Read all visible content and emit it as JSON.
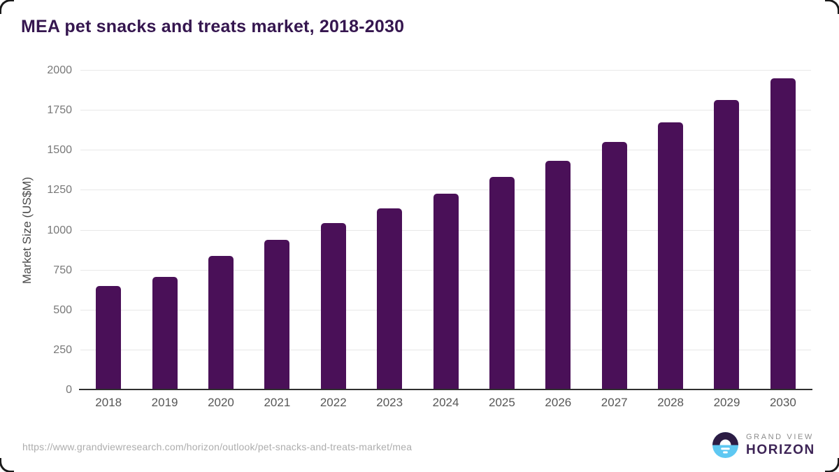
{
  "chart": {
    "title": "MEA pet snacks and treats market, 2018-2030"
  },
  "chart_data": {
    "type": "bar",
    "categories": [
      "2018",
      "2019",
      "2020",
      "2021",
      "2022",
      "2023",
      "2024",
      "2025",
      "2026",
      "2027",
      "2028",
      "2029",
      "2030"
    ],
    "values": [
      650,
      710,
      840,
      940,
      1045,
      1140,
      1230,
      1335,
      1435,
      1555,
      1675,
      1815,
      1950
    ],
    "title": "MEA pet snacks and treats market, 2018-2030",
    "xlabel": "",
    "ylabel": "Market Size (US$M)",
    "ylim": [
      0,
      2000
    ],
    "ytick_step": 250,
    "grid": true,
    "legend": "none",
    "bar_color": "#4a1058"
  },
  "footer": {
    "url": "https://www.grandviewresearch.com/horizon/outlook/pet-snacks-and-treats-market/mea"
  },
  "logo": {
    "top_text": "GRAND VIEW",
    "bottom_text": "HORIZON",
    "icon": "horizon-sunset-circle-icon",
    "icon_top_color": "#2c1c44",
    "icon_bottom_color": "#5ec8f2"
  },
  "colors": {
    "title": "#35164f",
    "bar": "#4a1058",
    "gridline": "#e8e8e8",
    "axis_line": "#2f2f2f",
    "tick_label": "#787878",
    "x_label": "#565656",
    "footer_url": "#adadad"
  }
}
